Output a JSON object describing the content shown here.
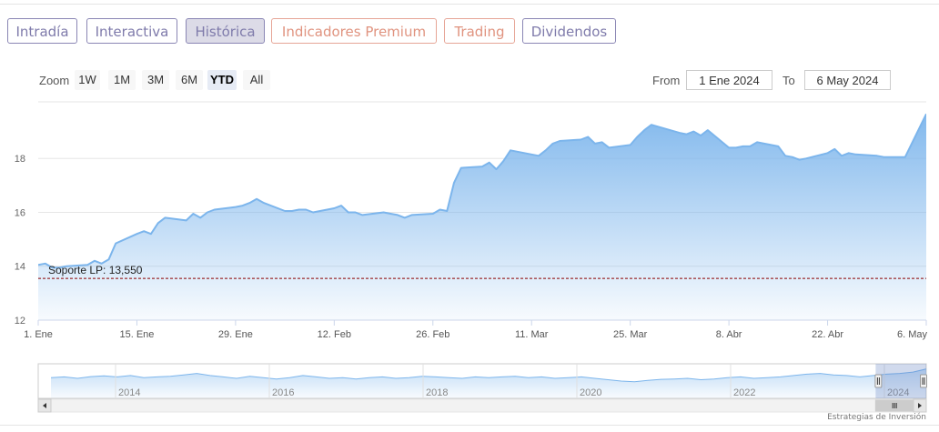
{
  "tabs": [
    {
      "label": "Intradía",
      "style": "normal"
    },
    {
      "label": "Interactiva",
      "style": "normal"
    },
    {
      "label": "Histórica",
      "style": "active"
    },
    {
      "label": "Indicadores Premium",
      "style": "orange"
    },
    {
      "label": "Trading",
      "style": "orange"
    },
    {
      "label": "Dividendos",
      "style": "normal"
    }
  ],
  "range_selector": {
    "zoom_label": "Zoom",
    "buttons": [
      "1W",
      "1M",
      "3M",
      "6M",
      "YTD",
      "All"
    ],
    "selected": "YTD",
    "from_label": "From",
    "from_value": "1 Ene 2024",
    "to_label": "To",
    "to_value": "6 May 2024"
  },
  "colors": {
    "line": "#7cb5ec",
    "support": "#8b0000",
    "tab_border": "#8a86b4",
    "tab_orange": "#e0937f"
  },
  "chart_data": {
    "type": "area",
    "x_start": "2024-01-01",
    "x_end": "2024-05-06",
    "xticks": [
      {
        "date": "2024-01-01",
        "label": "1. Ene"
      },
      {
        "date": "2024-01-15",
        "label": "15. Ene"
      },
      {
        "date": "2024-01-29",
        "label": "29. Ene"
      },
      {
        "date": "2024-02-12",
        "label": "12. Feb"
      },
      {
        "date": "2024-02-26",
        "label": "26. Feb"
      },
      {
        "date": "2024-03-11",
        "label": "11. Mar"
      },
      {
        "date": "2024-03-25",
        "label": "25. Mar"
      },
      {
        "date": "2024-04-08",
        "label": "8. Abr"
      },
      {
        "date": "2024-04-22",
        "label": "22. Abr"
      },
      {
        "date": "2024-05-06",
        "label": "6. May"
      }
    ],
    "yticks": [
      12,
      14,
      16,
      18
    ],
    "ylim": [
      12,
      20.1
    ],
    "grid": true,
    "series": [
      {
        "values": [
          [
            "2024-01-01",
            14.05
          ],
          [
            "2024-01-02",
            14.1
          ],
          [
            "2024-01-03",
            13.95
          ],
          [
            "2024-01-04",
            13.95
          ],
          [
            "2024-01-05",
            14.0
          ],
          [
            "2024-01-08",
            14.05
          ],
          [
            "2024-01-09",
            14.2
          ],
          [
            "2024-01-10",
            14.1
          ],
          [
            "2024-01-11",
            14.25
          ],
          [
            "2024-01-12",
            14.85
          ],
          [
            "2024-01-15",
            15.2
          ],
          [
            "2024-01-16",
            15.3
          ],
          [
            "2024-01-17",
            15.2
          ],
          [
            "2024-01-18",
            15.6
          ],
          [
            "2024-01-19",
            15.8
          ],
          [
            "2024-01-22",
            15.7
          ],
          [
            "2024-01-23",
            15.95
          ],
          [
            "2024-01-24",
            15.8
          ],
          [
            "2024-01-25",
            16.0
          ],
          [
            "2024-01-26",
            16.1
          ],
          [
            "2024-01-29",
            16.2
          ],
          [
            "2024-01-30",
            16.25
          ],
          [
            "2024-01-31",
            16.35
          ],
          [
            "2024-02-01",
            16.5
          ],
          [
            "2024-02-02",
            16.35
          ],
          [
            "2024-02-05",
            16.05
          ],
          [
            "2024-02-06",
            16.05
          ],
          [
            "2024-02-07",
            16.1
          ],
          [
            "2024-02-08",
            16.1
          ],
          [
            "2024-02-09",
            16.0
          ],
          [
            "2024-02-12",
            16.15
          ],
          [
            "2024-02-13",
            16.25
          ],
          [
            "2024-02-14",
            16.0
          ],
          [
            "2024-02-15",
            16.0
          ],
          [
            "2024-02-16",
            15.9
          ],
          [
            "2024-02-19",
            16.0
          ],
          [
            "2024-02-20",
            15.95
          ],
          [
            "2024-02-21",
            15.9
          ],
          [
            "2024-02-22",
            15.8
          ],
          [
            "2024-02-23",
            15.9
          ],
          [
            "2024-02-26",
            15.95
          ],
          [
            "2024-02-27",
            16.1
          ],
          [
            "2024-02-28",
            16.05
          ],
          [
            "2024-02-29",
            17.1
          ],
          [
            "2024-03-01",
            17.65
          ],
          [
            "2024-03-04",
            17.7
          ],
          [
            "2024-03-05",
            17.85
          ],
          [
            "2024-03-06",
            17.6
          ],
          [
            "2024-03-07",
            17.9
          ],
          [
            "2024-03-08",
            18.3
          ],
          [
            "2024-03-11",
            18.15
          ],
          [
            "2024-03-12",
            18.1
          ],
          [
            "2024-03-13",
            18.3
          ],
          [
            "2024-03-14",
            18.55
          ],
          [
            "2024-03-15",
            18.65
          ],
          [
            "2024-03-18",
            18.7
          ],
          [
            "2024-03-19",
            18.8
          ],
          [
            "2024-03-20",
            18.55
          ],
          [
            "2024-03-21",
            18.6
          ],
          [
            "2024-03-22",
            18.4
          ],
          [
            "2024-03-25",
            18.5
          ],
          [
            "2024-03-26",
            18.8
          ],
          [
            "2024-03-27",
            19.05
          ],
          [
            "2024-03-28",
            19.25
          ],
          [
            "2024-04-01",
            18.95
          ],
          [
            "2024-04-02",
            18.9
          ],
          [
            "2024-04-03",
            19.0
          ],
          [
            "2024-04-04",
            18.85
          ],
          [
            "2024-04-05",
            19.05
          ],
          [
            "2024-04-08",
            18.4
          ],
          [
            "2024-04-09",
            18.4
          ],
          [
            "2024-04-10",
            18.45
          ],
          [
            "2024-04-11",
            18.45
          ],
          [
            "2024-04-12",
            18.6
          ],
          [
            "2024-04-15",
            18.45
          ],
          [
            "2024-04-16",
            18.1
          ],
          [
            "2024-04-17",
            18.05
          ],
          [
            "2024-04-18",
            17.95
          ],
          [
            "2024-04-19",
            18.0
          ],
          [
            "2024-04-22",
            18.2
          ],
          [
            "2024-04-23",
            18.35
          ],
          [
            "2024-04-24",
            18.1
          ],
          [
            "2024-04-25",
            18.2
          ],
          [
            "2024-04-26",
            18.15
          ],
          [
            "2024-04-29",
            18.1
          ],
          [
            "2024-04-30",
            18.05
          ],
          [
            "2024-05-02",
            18.05
          ],
          [
            "2024-05-03",
            18.05
          ],
          [
            "2024-05-06",
            19.65
          ]
        ]
      }
    ],
    "plot_lines": [
      {
        "value": 13.55,
        "label": "Soporte LP: 13,550"
      }
    ],
    "navigator": {
      "year_labels": [
        "2014",
        "2016",
        "2018",
        "2020",
        "2022",
        "2024"
      ],
      "series": [
        0.6,
        0.62,
        0.58,
        0.63,
        0.65,
        0.62,
        0.66,
        0.6,
        0.62,
        0.64,
        0.68,
        0.72,
        0.66,
        0.62,
        0.58,
        0.64,
        0.6,
        0.56,
        0.6,
        0.66,
        0.62,
        0.58,
        0.6,
        0.56,
        0.6,
        0.62,
        0.58,
        0.6,
        0.64,
        0.62,
        0.6,
        0.58,
        0.62,
        0.6,
        0.62,
        0.64,
        0.6,
        0.62,
        0.58,
        0.6,
        0.62,
        0.58,
        0.54,
        0.5,
        0.48,
        0.52,
        0.55,
        0.56,
        0.58,
        0.54,
        0.56,
        0.6,
        0.62,
        0.58,
        0.6,
        0.62,
        0.66,
        0.7,
        0.72,
        0.68,
        0.66,
        0.62,
        0.66,
        0.7,
        0.72,
        0.76,
        0.85
      ],
      "selected_range": [
        0.943,
        1.0
      ]
    }
  },
  "credit": "Estrategias de Inversión"
}
